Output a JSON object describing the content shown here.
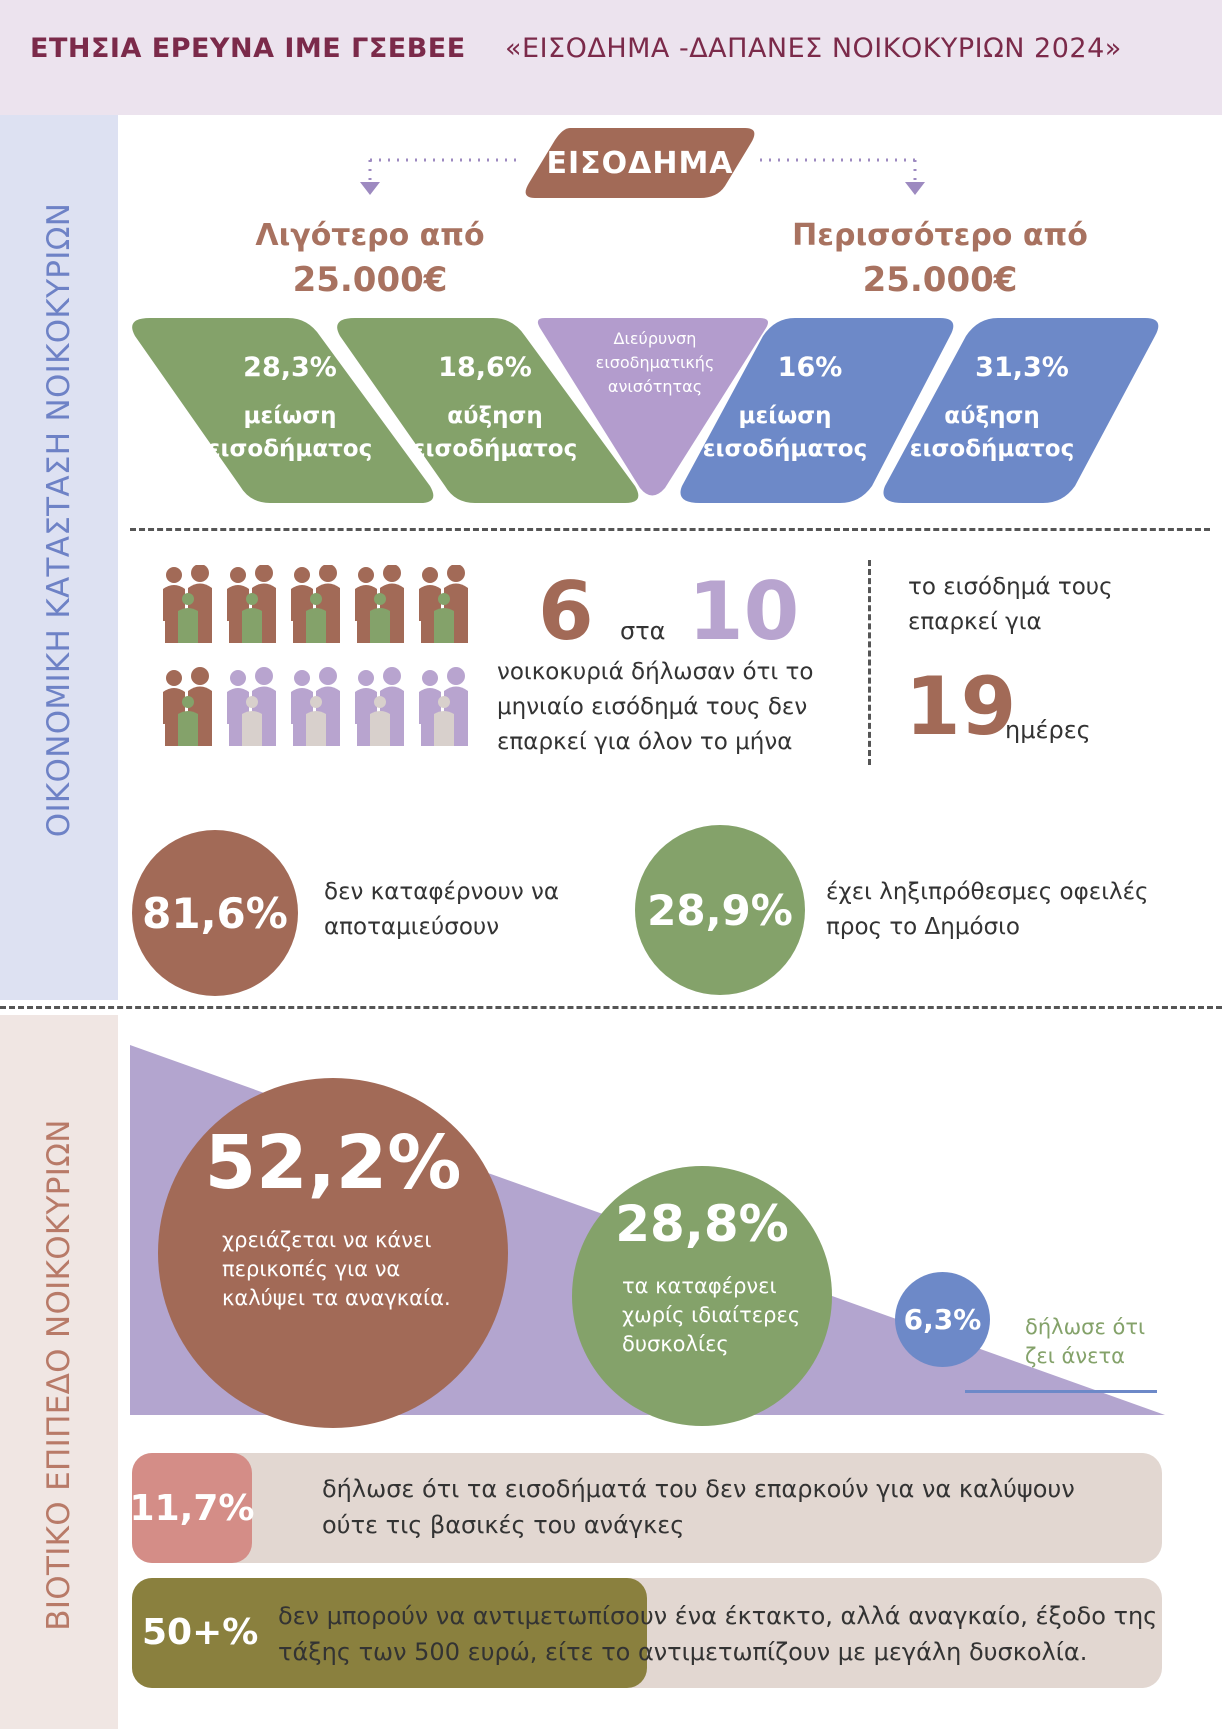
{
  "header": {
    "title_a": "ΕΤΗΣΙΑ ΕΡΕΥΝΑ ΙΜΕ ΓΣΕΒΕΕ",
    "title_b": "«ΕΙΣΟΔΗΜΑ -ΔΑΠΑΝΕΣ ΝΟΙΚΟΚΥΡΙΩΝ 2024»"
  },
  "sidebar": {
    "section1": "ΟΙΚΟΝΟΜΙΚΗ ΚΑΤΑΣΤΑΣΗ ΝΟΙΚΟΚΥΡΙΩΝ",
    "section2": "ΒΙΟΤΙΚΟ ΕΠΙΠΕΔΟ ΝΟΙΚΟΚΥΡΙΩΝ"
  },
  "income": {
    "label": "ΕΙΣΟΔΗΜΑ",
    "less_line1": "Λιγότερο από",
    "less_line2": "25.000€",
    "more_line1": "Περισσότερο από",
    "more_line2": "25.000€",
    "cards": [
      {
        "pct": "28,3%",
        "line1": "μείωση",
        "line2": "εισοδήματος"
      },
      {
        "pct": "18,6%",
        "line1": "αύξηση",
        "line2": "εισοδήματος"
      },
      {
        "pct": "16%",
        "line1": "μείωση",
        "line2": "εισοδήματος"
      },
      {
        "pct": "31,3%",
        "line1": "αύξηση",
        "line2": "εισοδήματος"
      }
    ],
    "triangle": [
      "Διεύρυνση",
      "εισοδηματικής",
      "ανισότητας"
    ]
  },
  "households": {
    "six": "6",
    "sta": "στα",
    "ten": "10",
    "desc": "νοικοκυριά δήλωσαν ότι το μηνιαίο εισόδημά τους δεν επαρκεί για όλον το μήνα",
    "suffices": "το εισόδημά τους επαρκεί για",
    "days_num": "19",
    "days_label": "ημέρες",
    "filled_icons": 6,
    "total_icons": 10
  },
  "savings": {
    "pct1": "81,6%",
    "text1": "δεν καταφέρνουν να αποταμιεύσουν",
    "pct2": "28,9%",
    "text2": "έχει ληξιπρόθεσμες οφειλές προς το Δημόσιο"
  },
  "living": {
    "pct1": "52,2%",
    "text1": "χρειάζεται να κάνει περικοπές για να καλύψει τα αναγκαία.",
    "pct2": "28,8%",
    "text2": "τα καταφέρνει χωρίς ιδιαίτερες δυσκολίες",
    "pct3": "6,3%",
    "text3": "δήλωσε ότι ζει άνετα"
  },
  "bars": {
    "pct1": "11,7%",
    "text1": "δήλωσε ότι τα εισοδήματά του δεν επαρκούν για να καλύψουν ούτε τις βασικές του ανάγκες",
    "pct2": "50+%",
    "text2": "δεν μπορούν να αντιμετωπίσουν ένα έκτακτο, αλλά αναγκαίο, έξοδο της τάξης των 500 ευρώ, είτε το αντιμετωπίζουν με μεγάλη δυσκολία."
  },
  "colors": {
    "title": "#7b2a4a",
    "brown": "#a26a57",
    "green": "#84a26a",
    "blue": "#6d89c8",
    "purple": "#b8a4cf",
    "pink": "#d48d87",
    "olive": "#8a803e"
  }
}
